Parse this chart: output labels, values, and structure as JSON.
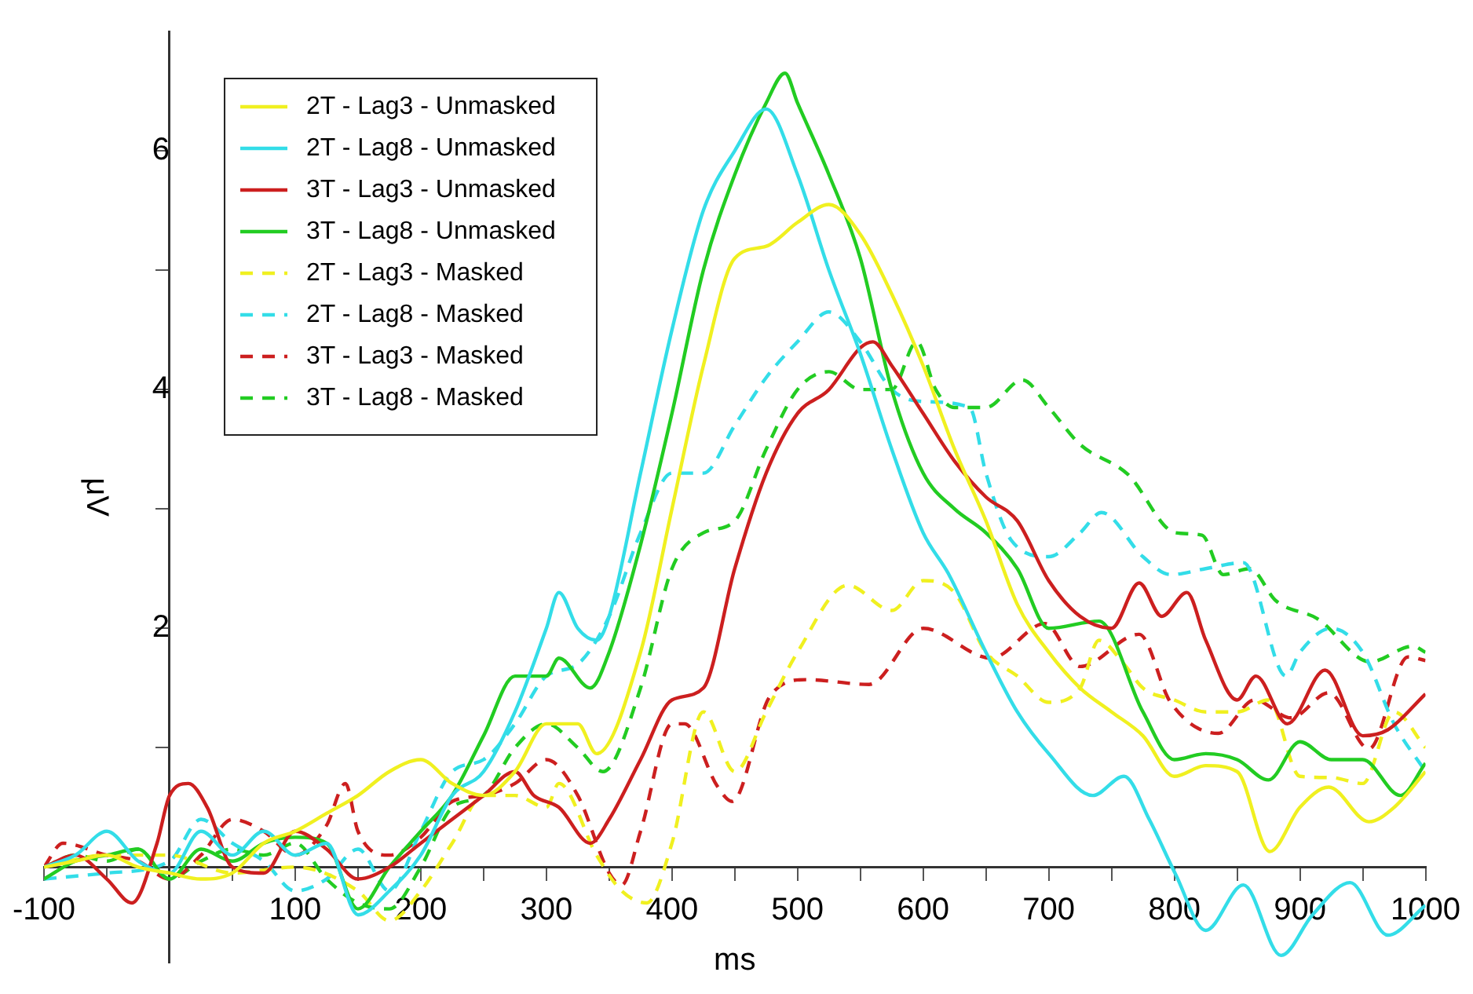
{
  "chart_data": {
    "type": "line",
    "xlabel": "ms",
    "ylabel": "μV",
    "xlim": [
      -100,
      1000
    ],
    "ylim": [
      -0.8,
      7.0
    ],
    "xticks": [
      -100,
      {
        "value": -50,
        "label": null
      },
      {
        "value": 0,
        "label": null
      },
      {
        "value": 50,
        "label": null
      },
      100,
      {
        "value": 150,
        "label": null
      },
      200,
      {
        "value": 250,
        "label": null
      },
      300,
      {
        "value": 350,
        "label": null
      },
      400,
      {
        "value": 450,
        "label": null
      },
      500,
      {
        "value": 550,
        "label": null
      },
      600,
      {
        "value": 650,
        "label": null
      },
      700,
      {
        "value": 750,
        "label": null
      },
      800,
      {
        "value": 850,
        "label": null
      },
      900,
      {
        "value": 950,
        "label": null
      },
      1000
    ],
    "yticks": [
      {
        "value": 0,
        "label": null
      },
      {
        "value": 1,
        "label": null
      },
      2,
      {
        "value": 3,
        "label": null
      },
      4,
      {
        "value": 5,
        "label": null
      },
      6
    ],
    "grid": false,
    "legend": "top left",
    "series": [
      {
        "name": "2T - Lag3 - Unmasked",
        "color": "#f0f020",
        "line_style": "solid",
        "x": [
          -100,
          -75,
          -50,
          -25,
          0,
          25,
          50,
          75,
          100,
          125,
          150,
          175,
          200,
          225,
          250,
          275,
          300,
          325,
          340,
          375,
          400,
          425,
          450,
          475,
          500,
          525,
          550,
          575,
          600,
          625,
          650,
          675,
          700,
          725,
          750,
          775,
          800,
          825,
          850,
          876,
          900,
          923,
          955,
          975,
          1000
        ],
        "values": [
          0,
          0.05,
          0.1,
          0,
          -0.05,
          -0.1,
          -0.05,
          0.2,
          0.3,
          0.45,
          0.6,
          0.8,
          0.9,
          0.7,
          0.6,
          0.8,
          1.2,
          1.2,
          0.95,
          1.8,
          3.0,
          4.2,
          5.1,
          5.2,
          5.4,
          5.55,
          5.3,
          4.8,
          4.2,
          3.5,
          2.9,
          2.2,
          1.8,
          1.5,
          1.3,
          1.1,
          0.76,
          0.85,
          0.8,
          0.13,
          0.5,
          0.67,
          0.38,
          0.5,
          0.8
        ]
      },
      {
        "name": "2T - Lag8 - Unmasked",
        "color": "#33dde8",
        "line_style": "solid",
        "x": [
          -100,
          -75,
          -50,
          -25,
          0,
          25,
          50,
          75,
          100,
          125,
          150,
          175,
          200,
          225,
          250,
          275,
          300,
          310,
          325,
          340,
          350,
          375,
          400,
          425,
          450,
          475,
          500,
          525,
          550,
          575,
          600,
          620,
          650,
          675,
          700,
          735,
          760,
          780,
          801,
          825,
          855,
          885,
          910,
          940,
          970,
          1000
        ],
        "values": [
          0,
          0.1,
          0.3,
          0.05,
          -0.05,
          0.3,
          0.1,
          0.3,
          0.1,
          0.2,
          -0.4,
          -0.2,
          0.1,
          0.6,
          0.8,
          1.3,
          2.0,
          2.3,
          2.0,
          1.9,
          2.1,
          3.3,
          4.5,
          5.5,
          6.0,
          6.35,
          5.8,
          5.0,
          4.3,
          3.5,
          2.8,
          2.46,
          1.8,
          1.3,
          0.95,
          0.6,
          0.76,
          0.4,
          -0.06,
          -0.53,
          -0.15,
          -0.74,
          -0.4,
          -0.13,
          -0.57,
          -0.32
        ]
      },
      {
        "name": "3T - Lag3 - Unmasked",
        "color": "#cc1f1f",
        "line_style": "solid",
        "x": [
          -100,
          -75,
          -50,
          -30,
          -10,
          0,
          15,
          30,
          50,
          75,
          100,
          125,
          150,
          175,
          200,
          225,
          250,
          275,
          290,
          310,
          335,
          350,
          375,
          400,
          425,
          450,
          475,
          500,
          525,
          550,
          560,
          575,
          600,
          625,
          650,
          675,
          700,
          725,
          750,
          772,
          790,
          810,
          825,
          850,
          865,
          890,
          920,
          950,
          970,
          1000
        ],
        "values": [
          0,
          0.1,
          -0.1,
          -0.3,
          0.2,
          0.6,
          0.7,
          0.5,
          0,
          -0.05,
          0.3,
          0.15,
          -0.1,
          0,
          0.2,
          0.4,
          0.6,
          0.8,
          0.6,
          0.5,
          0.2,
          0.4,
          0.9,
          1.4,
          1.5,
          2.5,
          3.3,
          3.8,
          4.0,
          4.35,
          4.4,
          4.2,
          3.8,
          3.4,
          3.1,
          2.9,
          2.4,
          2.1,
          2.0,
          2.38,
          2.1,
          2.3,
          1.9,
          1.4,
          1.6,
          1.2,
          1.65,
          1.1,
          1.15,
          1.45
        ]
      },
      {
        "name": "3T - Lag8 - Unmasked",
        "color": "#22cc22",
        "line_style": "solid",
        "x": [
          -100,
          -75,
          -50,
          -25,
          0,
          25,
          50,
          75,
          100,
          125,
          150,
          175,
          200,
          225,
          250,
          275,
          300,
          310,
          335,
          350,
          375,
          400,
          425,
          450,
          475,
          490,
          500,
          525,
          550,
          575,
          600,
          625,
          650,
          675,
          700,
          740,
          775,
          800,
          825,
          850,
          875,
          900,
          925,
          950,
          980,
          1000
        ],
        "values": [
          -0.1,
          0.05,
          0.1,
          0.15,
          -0.1,
          0.15,
          0.05,
          0.2,
          0.25,
          0.2,
          -0.35,
          0,
          0.3,
          0.6,
          1.1,
          1.6,
          1.6,
          1.75,
          1.5,
          1.8,
          2.7,
          3.8,
          5.0,
          5.8,
          6.4,
          6.65,
          6.4,
          5.8,
          5.1,
          4.0,
          3.3,
          3.0,
          2.8,
          2.5,
          2.0,
          2.06,
          1.3,
          0.9,
          0.95,
          0.9,
          0.73,
          1.05,
          0.9,
          0.9,
          0.6,
          0.87
        ]
      },
      {
        "name": "2T - Lag3 - Masked",
        "color": "#f0f020",
        "line_style": "dashed",
        "x": [
          -100,
          -50,
          0,
          50,
          100,
          150,
          175,
          200,
          225,
          250,
          275,
          300,
          310,
          340,
          360,
          380,
          400,
          425,
          450,
          475,
          500,
          540,
          575,
          600,
          625,
          650,
          675,
          700,
          725,
          740,
          760,
          775,
          800,
          825,
          850,
          875,
          900,
          925,
          950,
          975,
          1000
        ],
        "values": [
          0,
          0.1,
          0.1,
          -0.05,
          0,
          -0.2,
          -0.45,
          -0.2,
          0.2,
          0.6,
          0.6,
          0.5,
          0.7,
          0.1,
          -0.2,
          -0.3,
          0.2,
          1.3,
          0.8,
          1.3,
          1.8,
          2.36,
          2.15,
          2.4,
          2.3,
          1.8,
          1.6,
          1.38,
          1.5,
          1.9,
          1.7,
          1.5,
          1.4,
          1.3,
          1.3,
          1.4,
          0.76,
          0.75,
          0.7,
          1.3,
          1.0
        ]
      },
      {
        "name": "2T - Lag8 - Masked",
        "color": "#33dde8",
        "line_style": "dashed",
        "x": [
          -100,
          -50,
          0,
          25,
          50,
          75,
          100,
          125,
          150,
          175,
          200,
          225,
          250,
          275,
          300,
          325,
          350,
          375,
          400,
          425,
          450,
          475,
          500,
          525,
          550,
          575,
          600,
          637,
          650,
          670,
          700,
          725,
          742,
          775,
          797,
          825,
          855,
          889,
          900,
          925,
          950,
          975,
          1000
        ],
        "values": [
          -0.1,
          -0.05,
          0.05,
          0.4,
          0.2,
          0.05,
          -0.2,
          -0.1,
          0.15,
          -0.2,
          0.3,
          0.8,
          0.9,
          1.2,
          1.6,
          1.7,
          2.1,
          2.8,
          3.3,
          3.3,
          3.7,
          4.1,
          4.4,
          4.65,
          4.4,
          4.0,
          3.9,
          3.85,
          3.3,
          2.74,
          2.6,
          2.8,
          2.97,
          2.6,
          2.45,
          2.5,
          2.55,
          1.6,
          1.8,
          2.0,
          1.8,
          1.2,
          0.8
        ]
      },
      {
        "name": "3T - Lag3 - Masked",
        "color": "#cc1f1f",
        "line_style": "dashed",
        "x": [
          -100,
          -85,
          -50,
          -25,
          0,
          25,
          50,
          75,
          100,
          125,
          140,
          150,
          175,
          200,
          225,
          250,
          275,
          300,
          325,
          350,
          360,
          375,
          400,
          410,
          436,
          448,
          478,
          507,
          557,
          600,
          654,
          697,
          725,
          772,
          797,
          835,
          864,
          893,
          923,
          955,
          986,
          1000
        ],
        "values": [
          0,
          0.2,
          0.1,
          0.05,
          -0.1,
          0.1,
          0.4,
          0.3,
          0.1,
          0.35,
          0.7,
          0.3,
          0.1,
          0.25,
          0.55,
          0.6,
          0.7,
          0.9,
          0.6,
          -0.05,
          -0.15,
          0.3,
          1.2,
          1.2,
          0.68,
          0.55,
          1.43,
          1.57,
          1.53,
          2.0,
          1.75,
          2.04,
          1.68,
          1.95,
          1.38,
          1.12,
          1.4,
          1.25,
          1.46,
          0.99,
          1.76,
          1.73
        ]
      },
      {
        "name": "3T - Lag8 - Masked",
        "color": "#22cc22",
        "line_style": "dashed",
        "x": [
          -100,
          -75,
          -50,
          -25,
          0,
          25,
          50,
          75,
          100,
          125,
          150,
          175,
          200,
          225,
          250,
          275,
          300,
          325,
          345,
          375,
          400,
          425,
          450,
          475,
          500,
          525,
          550,
          575,
          595,
          610,
          625,
          650,
          679,
          700,
          725,
          763,
          801,
          822,
          839,
          860,
          881,
          914,
          956,
          990,
          1000
        ],
        "values": [
          0,
          0.1,
          0.05,
          0.15,
          -0.1,
          0.05,
          0.15,
          0.1,
          0.2,
          -0.1,
          -0.3,
          -0.35,
          0,
          0.5,
          0.6,
          1.0,
          1.2,
          1.0,
          0.8,
          1.5,
          2.5,
          2.8,
          2.9,
          3.5,
          4.0,
          4.15,
          4.0,
          4.0,
          4.4,
          4.0,
          3.85,
          3.85,
          4.08,
          3.85,
          3.54,
          3.29,
          2.8,
          2.78,
          2.45,
          2.5,
          2.23,
          2.08,
          1.72,
          1.85,
          1.8
        ]
      }
    ]
  }
}
